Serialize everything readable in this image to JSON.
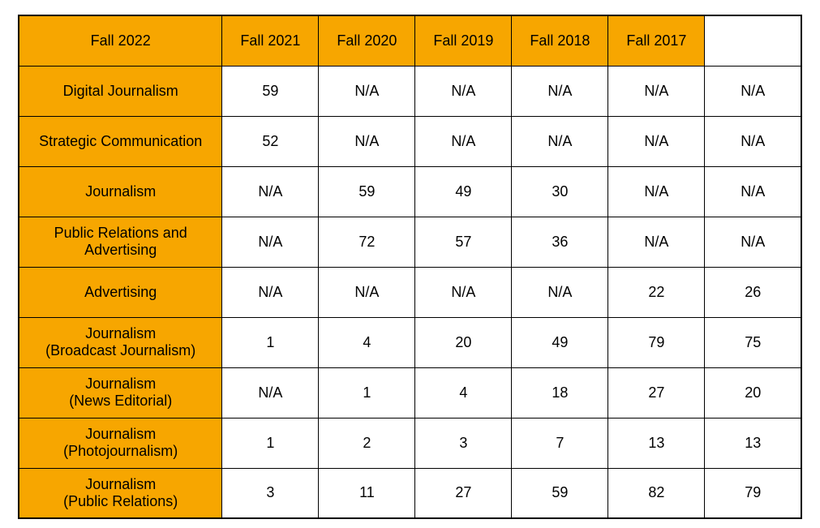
{
  "type": "table",
  "colors": {
    "header_bg": "#f7a600",
    "rowheader_bg": "#f7a600",
    "cell_bg": "#ffffff",
    "border": "#000000",
    "outer_border": "#000000",
    "text": "#000000"
  },
  "font": {
    "family": "Arial",
    "size_pt": 13,
    "weight": "normal"
  },
  "columns": [
    "",
    "Fall 2022",
    "Fall 2021",
    "Fall 2020",
    "Fall 2019",
    "Fall 2018",
    "Fall 2017"
  ],
  "rows": [
    {
      "label": "Digital Journalism",
      "sublabel": "",
      "cells": [
        "59",
        "N/A",
        "N/A",
        "N/A",
        "N/A",
        "N/A"
      ]
    },
    {
      "label": "Strategic Communication",
      "sublabel": "",
      "cells": [
        "52",
        "N/A",
        "N/A",
        "N/A",
        "N/A",
        "N/A"
      ]
    },
    {
      "label": "Journalism",
      "sublabel": "",
      "cells": [
        "N/A",
        "59",
        "49",
        "30",
        "N/A",
        "N/A"
      ]
    },
    {
      "label": "Public Relations and",
      "sublabel": "Advertising",
      "cells": [
        "N/A",
        "72",
        "57",
        "36",
        "N/A",
        "N/A"
      ]
    },
    {
      "label": "Advertising",
      "sublabel": "",
      "cells": [
        "N/A",
        "N/A",
        "N/A",
        "N/A",
        "22",
        "26"
      ]
    },
    {
      "label": "Journalism",
      "sublabel": "(Broadcast Journalism)",
      "cells": [
        "1",
        "4",
        "20",
        "49",
        "79",
        "75"
      ]
    },
    {
      "label": "Journalism",
      "sublabel": "(News Editorial)",
      "cells": [
        "N/A",
        "1",
        "4",
        "18",
        "27",
        "20"
      ]
    },
    {
      "label": "Journalism",
      "sublabel": "(Photojournalism)",
      "cells": [
        "1",
        "2",
        "3",
        "7",
        "13",
        "13"
      ]
    },
    {
      "label": "Journalism",
      "sublabel": "(Public Relations)",
      "cells": [
        "3",
        "11",
        "27",
        "59",
        "82",
        "79"
      ]
    }
  ]
}
